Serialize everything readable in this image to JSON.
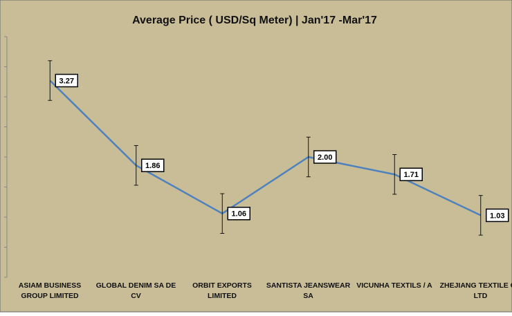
{
  "chart_data": {
    "type": "line",
    "title": "Average Price ( USD/Sq Meter)  | Jan'17 -Mar'17",
    "categories": [
      "ASIAM BUSINESS GROUP LIMITED",
      "GLOBAL DENIM SA DE CV",
      "ORBIT EXPORTS LIMITED",
      "SANTISTA JEANSWEAR SA",
      "VICUNHA TEXTILS / A",
      "ZHEJIANG TEXTILE CO LTD"
    ],
    "series": [
      {
        "name": "Average Price",
        "color": "#4f81bd",
        "values": [
          3.27,
          1.86,
          1.06,
          2.0,
          1.71,
          1.03
        ],
        "value_labels": [
          "3.27",
          "1.86",
          "1.06",
          "2.00",
          "1.71",
          "1.03"
        ],
        "errors": [
          0.33,
          0.33,
          0.33,
          0.33,
          0.33,
          0.33
        ]
      }
    ],
    "ylim": [
      0,
      4
    ],
    "yticks": [
      0,
      0.5,
      1,
      1.5,
      2,
      2.5,
      3,
      3.5,
      4
    ]
  }
}
